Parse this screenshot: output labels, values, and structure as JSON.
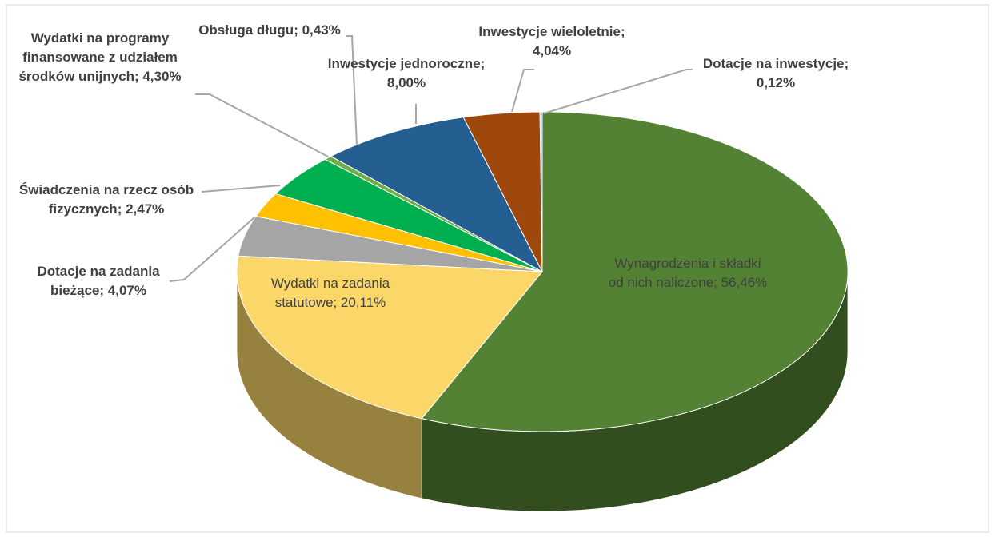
{
  "chart_data": {
    "type": "pie",
    "values": [
      56.46,
      20.11,
      4.07,
      2.47,
      4.3,
      0.43,
      8.0,
      4.04,
      0.12
    ],
    "value_labels": [
      "Wynagrodzenia i składki od nich naliczone; 56,46%",
      "Wydatki na zadania statutowe; 20,11%",
      "Dotacje na zadania bieżące; 4,07%",
      "Świadczenia na rzecz osób fizycznych; 2,47%",
      "Wydatki na programy finansowane z udziałem środków unijnych; 4,30%",
      "Obsługa długu; 0,43%",
      "Inwestycje jednoroczne; 8,00%",
      "Inwestycje wieloletnie; 4,04%",
      "Dotacje na inwestycje; 0,12%"
    ],
    "colors": [
      "#548235",
      "#fad768",
      "#a5a5a5",
      "#ffc000",
      "#00b050",
      "#70ad47",
      "#255e91",
      "#9e480e",
      "#8faadc"
    ]
  }
}
